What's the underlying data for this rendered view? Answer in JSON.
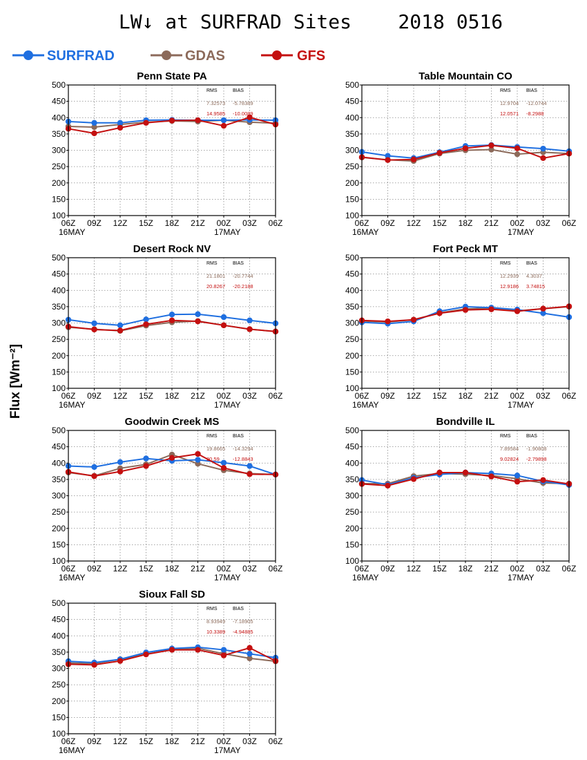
{
  "title": "LW↓ at SURFRAD Sites    2018 0516",
  "ylabel": "Flux [Wm⁻²]",
  "legend": [
    {
      "name": "SURFRAD",
      "color": "#1f6fe0"
    },
    {
      "name": "GDAS",
      "color": "#8c6a5a"
    },
    {
      "name": "GFS",
      "color": "#c41010"
    }
  ],
  "stats_header": {
    "rms": "RMS",
    "bias": "BIAS"
  },
  "chart_data": [
    {
      "type": "line",
      "title": "Penn State PA",
      "x": [
        "06Z",
        "09Z",
        "12Z",
        "15Z",
        "18Z",
        "21Z",
        "00Z",
        "03Z",
        "06Z"
      ],
      "date_labels": [
        "16MAY",
        "",
        "",
        "",
        "",
        "",
        "17MAY",
        "",
        ""
      ],
      "ylim": [
        100,
        500
      ],
      "yticks": [
        100,
        150,
        200,
        250,
        300,
        350,
        400,
        450,
        500
      ],
      "grid": true,
      "series": [
        {
          "name": "SURFRAD",
          "values": [
            388,
            384,
            384,
            392,
            393,
            392,
            392,
            393,
            392
          ]
        },
        {
          "name": "GDAS",
          "values": [
            373,
            371,
            379,
            386,
            390,
            388,
            392,
            386,
            383
          ]
        },
        {
          "name": "GFS",
          "values": [
            366,
            352,
            369,
            384,
            391,
            392,
            375,
            401,
            379
          ]
        }
      ],
      "stats": {
        "gdas": {
          "rms": "7.32573",
          "bias": "-5.78389"
        },
        "gfs": {
          "rms": "14.9585",
          "bias": "-10.0089"
        }
      }
    },
    {
      "type": "line",
      "title": "Table Mountain CO",
      "x": [
        "06Z",
        "09Z",
        "12Z",
        "15Z",
        "18Z",
        "21Z",
        "00Z",
        "03Z",
        "06Z"
      ],
      "date_labels": [
        "16MAY",
        "",
        "",
        "",
        "",
        "",
        "17MAY",
        "",
        ""
      ],
      "ylim": [
        100,
        500
      ],
      "yticks": [
        100,
        150,
        200,
        250,
        300,
        350,
        400,
        450,
        500
      ],
      "grid": true,
      "series": [
        {
          "name": "SURFRAD",
          "values": [
            295,
            283,
            276,
            294,
            313,
            316,
            310,
            305,
            297
          ]
        },
        {
          "name": "GDAS",
          "values": [
            278,
            271,
            267,
            290,
            300,
            302,
            288,
            294,
            290
          ]
        },
        {
          "name": "GFS",
          "values": [
            279,
            270,
            272,
            292,
            306,
            315,
            306,
            276,
            290
          ]
        }
      ],
      "stats": {
        "gdas": {
          "rms": "12.9704",
          "bias": "-12.0744"
        },
        "gfs": {
          "rms": "12.0571",
          "bias": "-8.2988"
        }
      }
    },
    {
      "type": "line",
      "title": "Desert Rock NV",
      "x": [
        "06Z",
        "09Z",
        "12Z",
        "15Z",
        "18Z",
        "21Z",
        "00Z",
        "03Z",
        "06Z"
      ],
      "date_labels": [
        "16MAY",
        "",
        "",
        "",
        "",
        "",
        "17MAY",
        "",
        ""
      ],
      "ylim": [
        100,
        500
      ],
      "yticks": [
        100,
        150,
        200,
        250,
        300,
        350,
        400,
        450,
        500
      ],
      "grid": true,
      "series": [
        {
          "name": "SURFRAD",
          "values": [
            310,
            299,
            293,
            311,
            326,
            327,
            318,
            308,
            299
          ]
        },
        {
          "name": "GDAS",
          "values": [
            287,
            281,
            276,
            292,
            302,
            306,
            293,
            281,
            274
          ]
        },
        {
          "name": "GFS",
          "values": [
            289,
            280,
            277,
            296,
            308,
            305,
            293,
            281,
            274
          ]
        }
      ],
      "stats": {
        "gdas": {
          "rms": "21.1801",
          "bias": "-20.7744"
        },
        "gfs": {
          "rms": "20.8267",
          "bias": "-20.2188"
        }
      }
    },
    {
      "type": "line",
      "title": "Fort Peck MT",
      "x": [
        "06Z",
        "09Z",
        "12Z",
        "15Z",
        "18Z",
        "21Z",
        "00Z",
        "03Z",
        "06Z"
      ],
      "date_labels": [
        "16MAY",
        "",
        "",
        "",
        "",
        "",
        "17MAY",
        "",
        ""
      ],
      "ylim": [
        100,
        500
      ],
      "yticks": [
        100,
        150,
        200,
        250,
        300,
        350,
        400,
        450,
        500
      ],
      "grid": true,
      "series": [
        {
          "name": "SURFRAD",
          "values": [
            302,
            298,
            305,
            336,
            350,
            347,
            341,
            330,
            318
          ]
        },
        {
          "name": "GDAS",
          "values": [
            306,
            303,
            310,
            331,
            343,
            346,
            337,
            344,
            350
          ]
        },
        {
          "name": "GFS",
          "values": [
            308,
            305,
            310,
            330,
            340,
            342,
            336,
            344,
            351
          ]
        }
      ],
      "stats": {
        "gdas": {
          "rms": "12.2939",
          "bias": "4.3037"
        },
        "gfs": {
          "rms": "12.9186",
          "bias": "3.74815"
        }
      }
    },
    {
      "type": "line",
      "title": "Goodwin Creek MS",
      "x": [
        "06Z",
        "09Z",
        "12Z",
        "15Z",
        "18Z",
        "21Z",
        "00Z",
        "03Z",
        "06Z"
      ],
      "date_labels": [
        "16MAY",
        "",
        "",
        "",
        "",
        "",
        "17MAY",
        "",
        ""
      ],
      "ylim": [
        100,
        500
      ],
      "yticks": [
        100,
        150,
        200,
        250,
        300,
        350,
        400,
        450,
        500
      ],
      "grid": true,
      "series": [
        {
          "name": "SURFRAD",
          "values": [
            391,
            388,
            403,
            414,
            407,
            410,
            401,
            391,
            365
          ]
        },
        {
          "name": "GDAS",
          "values": [
            371,
            361,
            384,
            396,
            426,
            398,
            378,
            368,
            365
          ]
        },
        {
          "name": "GFS",
          "values": [
            373,
            360,
            374,
            391,
            416,
            428,
            385,
            366,
            365
          ]
        }
      ],
      "stats": {
        "gdas": {
          "rms": "19.8665",
          "bias": "-14.3294"
        },
        "gfs": {
          "rms": "20.59",
          "bias": "-12.8843"
        }
      }
    },
    {
      "type": "line",
      "title": "Bondville IL",
      "x": [
        "06Z",
        "09Z",
        "12Z",
        "15Z",
        "18Z",
        "21Z",
        "00Z",
        "03Z",
        "06Z"
      ],
      "date_labels": [
        "16MAY",
        "",
        "",
        "",
        "",
        "",
        "17MAY",
        "",
        ""
      ],
      "ylim": [
        100,
        500
      ],
      "yticks": [
        100,
        150,
        200,
        250,
        300,
        350,
        400,
        450,
        500
      ],
      "grid": true,
      "series": [
        {
          "name": "SURFRAD",
          "values": [
            348,
            334,
            355,
            365,
            371,
            368,
            362,
            344,
            333
          ]
        },
        {
          "name": "GDAS",
          "values": [
            337,
            337,
            360,
            368,
            366,
            362,
            352,
            339,
            337
          ]
        },
        {
          "name": "GFS",
          "values": [
            336,
            331,
            351,
            371,
            371,
            359,
            343,
            348,
            336
          ]
        }
      ],
      "stats": {
        "gdas": {
          "rms": "7.89584",
          "bias": "-1.90808"
        },
        "gfs": {
          "rms": "9.02824",
          "bias": "-2.79898"
        }
      }
    },
    {
      "type": "line",
      "title": "Sioux Fall SD",
      "x": [
        "06Z",
        "09Z",
        "12Z",
        "15Z",
        "18Z",
        "21Z",
        "00Z",
        "03Z",
        "06Z"
      ],
      "date_labels": [
        "16MAY",
        "",
        "",
        "",
        "",
        "",
        "17MAY",
        "",
        ""
      ],
      "ylim": [
        100,
        500
      ],
      "yticks": [
        100,
        150,
        200,
        250,
        300,
        350,
        400,
        450,
        500
      ],
      "grid": true,
      "series": [
        {
          "name": "SURFRAD",
          "values": [
            322,
            318,
            328,
            349,
            361,
            365,
            357,
            345,
            333
          ]
        },
        {
          "name": "GDAS",
          "values": [
            317,
            315,
            328,
            344,
            358,
            362,
            345,
            331,
            322
          ]
        },
        {
          "name": "GFS",
          "values": [
            313,
            311,
            323,
            343,
            357,
            357,
            340,
            363,
            323
          ]
        }
      ],
      "stats": {
        "gdas": {
          "rms": "8.93949",
          "bias": "-7.18905"
        },
        "gfs": {
          "rms": "10.3389",
          "bias": "-4.94885"
        }
      }
    }
  ]
}
